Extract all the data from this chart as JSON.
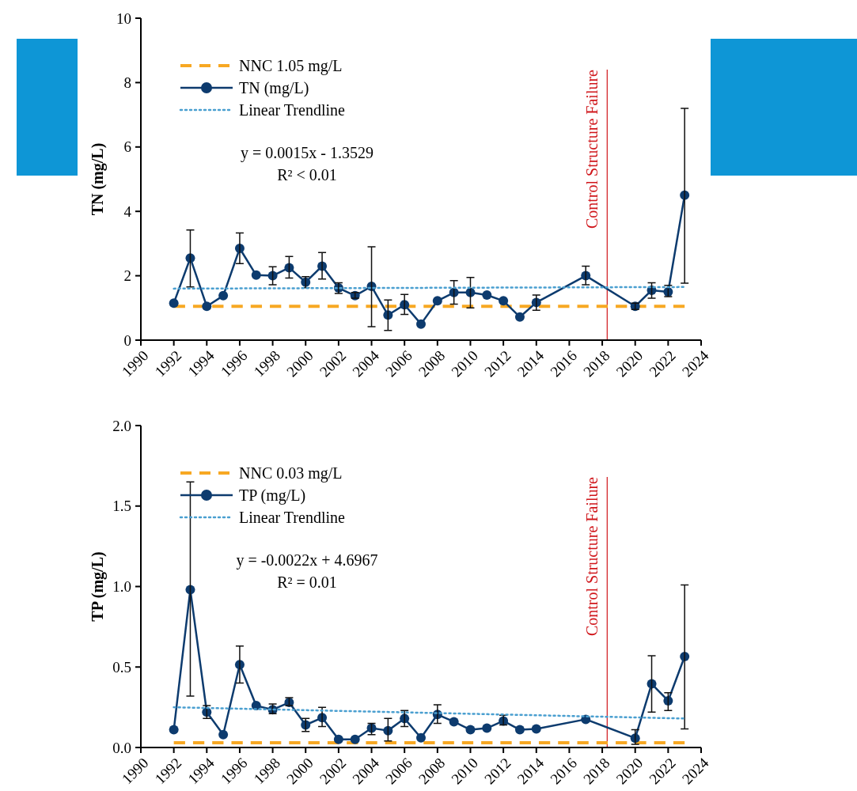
{
  "chart_data": [
    {
      "type": "line",
      "ylabel": "TN (mg/L)",
      "xlim": [
        1990,
        2024
      ],
      "xticks": [
        1990,
        1992,
        1994,
        1996,
        1998,
        2000,
        2002,
        2004,
        2006,
        2008,
        2010,
        2012,
        2014,
        2016,
        2018,
        2020,
        2022,
        2024
      ],
      "ylim": [
        0,
        10
      ],
      "yticks": [
        0,
        2,
        4,
        6,
        8,
        10
      ],
      "grid": false,
      "legend": "top left",
      "annotations": [
        "y = 0.0015x - 1.3529",
        "R² < 0.01"
      ],
      "ref_lines": [
        {
          "axis": "x",
          "value": 2018.3,
          "label": "Control Structure Failure",
          "color": "#d0161b"
        }
      ],
      "series": [
        {
          "name": "NNC 1.05 mg/L",
          "color": "#f7a823",
          "line_style": "dashed",
          "marker": "none",
          "x": [
            1992,
            2023
          ],
          "values": [
            1.05,
            1.05
          ]
        },
        {
          "name": "TN (mg/L)",
          "color": "#0d3b6e",
          "line_style": "solid",
          "marker": "circle",
          "x": [
            1992,
            1993,
            1994,
            1995,
            1996,
            1997,
            1998,
            1999,
            2000,
            2001,
            2002,
            2003,
            2004,
            2005,
            2006,
            2007,
            2008,
            2009,
            2010,
            2011,
            2012,
            2013,
            2014,
            2017,
            2020,
            2021,
            2022,
            2023
          ],
          "values": [
            1.15,
            2.55,
            1.05,
            1.38,
            2.85,
            2.02,
            2.0,
            2.25,
            1.8,
            2.3,
            1.62,
            1.38,
            1.67,
            0.78,
            1.1,
            0.5,
            1.22,
            1.48,
            1.48,
            1.4,
            1.22,
            0.72,
            1.17,
            2.0,
            1.05,
            1.55,
            1.5,
            4.5
          ],
          "errors": [
            null,
            [
              1.65,
              3.42
            ],
            null,
            null,
            [
              2.38,
              3.33
            ],
            null,
            [
              1.72,
              2.28
            ],
            [
              1.93,
              2.6
            ],
            [
              1.63,
              1.97
            ],
            [
              1.9,
              2.72
            ],
            [
              1.45,
              1.78
            ],
            [
              1.3,
              1.48
            ],
            [
              0.42,
              2.9
            ],
            [
              0.3,
              1.25
            ],
            [
              0.8,
              1.42
            ],
            null,
            null,
            [
              1.12,
              1.85
            ],
            [
              1.0,
              1.95
            ],
            null,
            null,
            null,
            [
              0.93,
              1.4
            ],
            [
              1.72,
              2.3
            ],
            [
              0.95,
              1.15
            ],
            [
              1.3,
              1.78
            ],
            [
              1.35,
              1.7
            ],
            [
              1.77,
              7.2
            ]
          ]
        },
        {
          "name": "Linear Trendline",
          "color": "#4a9fd0",
          "line_style": "dotted",
          "marker": "none",
          "x": [
            1992,
            2023
          ],
          "values": [
            1.6,
            1.65
          ]
        }
      ]
    },
    {
      "type": "line",
      "ylabel": "TP (mg/L)",
      "xlim": [
        1990,
        2024
      ],
      "xticks": [
        1990,
        1992,
        1994,
        1996,
        1998,
        2000,
        2002,
        2004,
        2006,
        2008,
        2010,
        2012,
        2014,
        2016,
        2018,
        2020,
        2022,
        2024
      ],
      "ylim": [
        0,
        2
      ],
      "yticks": [
        {
          "value": 0,
          "label": "0.0"
        },
        {
          "value": 0.5,
          "label": "0.5"
        },
        {
          "value": 1,
          "label": "1.0"
        },
        {
          "value": 1.5,
          "label": "1.5"
        },
        {
          "value": 2,
          "label": "2.0"
        }
      ],
      "grid": false,
      "legend": "top left",
      "annotations": [
        "y = -0.0022x + 4.6967",
        "R² = 0.01"
      ],
      "ref_lines": [
        {
          "axis": "x",
          "value": 2018.3,
          "label": "Control Structure Failure",
          "color": "#d0161b"
        }
      ],
      "series": [
        {
          "name": "NNC 0.03 mg/L",
          "color": "#f7a823",
          "line_style": "dashed",
          "marker": "none",
          "x": [
            1992,
            2023
          ],
          "values": [
            0.03,
            0.03
          ]
        },
        {
          "name": "TP (mg/L)",
          "color": "#0d3b6e",
          "line_style": "solid",
          "marker": "circle",
          "x": [
            1992,
            1993,
            1994,
            1995,
            1996,
            1997,
            1998,
            1999,
            2000,
            2001,
            2002,
            2003,
            2004,
            2005,
            2006,
            2007,
            2008,
            2009,
            2010,
            2011,
            2012,
            2013,
            2014,
            2017,
            2020,
            2021,
            2022,
            2023
          ],
          "values": [
            0.11,
            0.98,
            0.22,
            0.08,
            0.515,
            0.26,
            0.235,
            0.28,
            0.14,
            0.185,
            0.05,
            0.05,
            0.12,
            0.105,
            0.18,
            0.06,
            0.205,
            0.16,
            0.11,
            0.12,
            0.165,
            0.11,
            0.115,
            0.175,
            0.058,
            0.395,
            0.29,
            0.565
          ],
          "errors": [
            null,
            [
              0.32,
              1.65
            ],
            [
              0.18,
              0.26
            ],
            null,
            [
              0.4,
              0.63
            ],
            null,
            [
              0.21,
              0.27
            ],
            [
              0.26,
              0.31
            ],
            [
              0.1,
              0.18
            ],
            [
              0.13,
              0.25
            ],
            null,
            null,
            [
              0.08,
              0.15
            ],
            [
              0.04,
              0.18
            ],
            [
              0.13,
              0.23
            ],
            null,
            [
              0.15,
              0.265
            ],
            null,
            null,
            null,
            [
              0.14,
              0.2
            ],
            null,
            null,
            null,
            [
              0.02,
              0.11
            ],
            [
              0.22,
              0.57
            ],
            [
              0.23,
              0.34
            ],
            [
              0.115,
              1.01
            ]
          ]
        },
        {
          "name": "Linear Trendline",
          "color": "#4a9fd0",
          "line_style": "dotted",
          "marker": "none",
          "x": [
            1992,
            2023
          ],
          "values": [
            0.25,
            0.18
          ]
        }
      ]
    }
  ]
}
